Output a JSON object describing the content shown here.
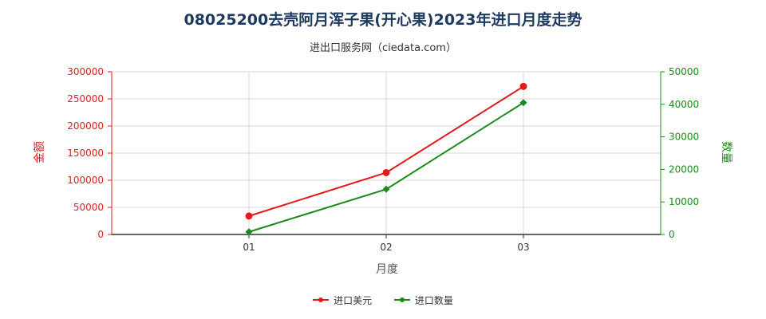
{
  "chart_data": {
    "type": "line",
    "title": "08025200去壳阿月浑子果(开心果)2023年进口月度走势",
    "subtitle": "进出口服务网（ciedata.com）",
    "categories": [
      "01",
      "02",
      "03"
    ],
    "xlabel": "月度",
    "ylabel_left": "金额",
    "ylabel_right": "数量",
    "ylim_left": [
      0,
      300000
    ],
    "yticks_left": [
      "0",
      "50000",
      "100000",
      "150000",
      "200000",
      "250000",
      "300000"
    ],
    "ylim_right": [
      0,
      50000
    ],
    "yticks_right": [
      "0",
      "10000",
      "20000",
      "30000",
      "40000",
      "50000"
    ],
    "grid": true,
    "legend_position": "bottom",
    "series": [
      {
        "name": "进口美元",
        "axis": "left",
        "color": "#e31a1c",
        "marker": "circle",
        "values": [
          34000,
          114000,
          273000
        ]
      },
      {
        "name": "进口数量",
        "axis": "right",
        "color": "#1a8a1a",
        "marker": "diamond",
        "values": [
          800,
          13900,
          40500
        ]
      }
    ]
  }
}
